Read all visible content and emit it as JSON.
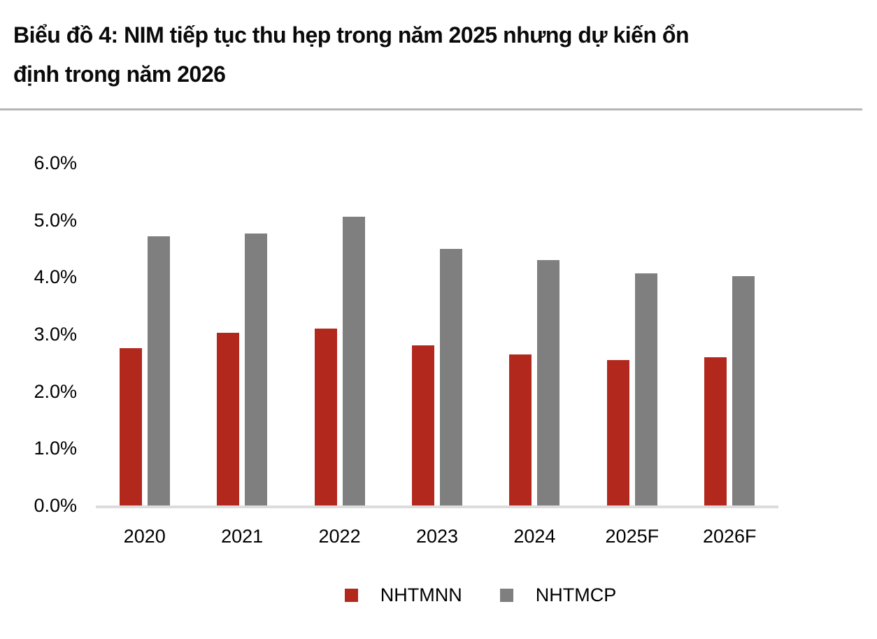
{
  "header": {
    "title_line1": "Biểu đồ 4: NIM tiếp tục thu hẹp trong năm 2025 nhưng dự kiến ổn",
    "title_line2": "định trong năm 2026"
  },
  "chart_data": {
    "type": "bar",
    "title": "Biểu đồ 4: NIM tiếp tục thu hẹp trong năm 2025 nhưng dự kiến ổn định trong năm 2026",
    "categories": [
      "2020",
      "2021",
      "2022",
      "2023",
      "2024",
      "2025F",
      "2026F"
    ],
    "series": [
      {
        "name": "NHTMNN",
        "color": "#b2281d",
        "values": [
          2.75,
          3.02,
          3.1,
          2.8,
          2.65,
          2.55,
          2.6
        ]
      },
      {
        "name": "NHTMCP",
        "color": "#7f7f7f",
        "values": [
          4.72,
          4.76,
          5.06,
          4.5,
          4.3,
          4.06,
          4.02
        ]
      }
    ],
    "y_ticks": [
      "6.0%",
      "5.0%",
      "4.0%",
      "3.0%",
      "2.0%",
      "1.0%",
      "0.0%"
    ],
    "ylim": [
      0,
      6
    ],
    "xlabel": "",
    "ylabel": "",
    "grid": false,
    "legend_position": "bottom"
  },
  "colors": {
    "series_nhtmnn": "#b2281d",
    "series_nhtmcp": "#7f7f7f",
    "axis_line": "#dcdcdc",
    "title_divider": "#b5b5b5",
    "text": "#000000"
  }
}
